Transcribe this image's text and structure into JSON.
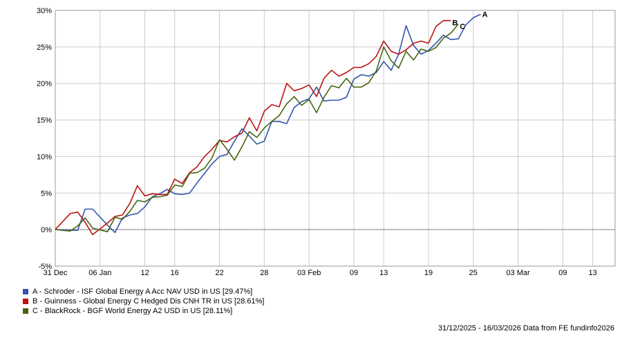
{
  "chart_data": {
    "type": "line",
    "title": "",
    "xlabel": "",
    "ylabel": "",
    "ylim": [
      -5,
      30
    ],
    "y_ticks": [
      -5,
      0,
      5,
      10,
      15,
      20,
      25,
      30
    ],
    "y_tick_labels": [
      "-5%",
      "0%",
      "5%",
      "10%",
      "15%",
      "20%",
      "25%",
      "30%"
    ],
    "x_start": "2025-12-31",
    "x_end": "2026-03-16",
    "x_ticks": [
      {
        "date": "2025-12-31",
        "label": "31 Dec"
      },
      {
        "date": "2026-01-06",
        "label": "06 Jan"
      },
      {
        "date": "2026-01-12",
        "label": "12"
      },
      {
        "date": "2026-01-16",
        "label": "16"
      },
      {
        "date": "2026-01-22",
        "label": "22"
      },
      {
        "date": "2026-01-28",
        "label": "28"
      },
      {
        "date": "2026-02-03",
        "label": "03 Feb"
      },
      {
        "date": "2026-02-09",
        "label": "09"
      },
      {
        "date": "2026-02-13",
        "label": "13"
      },
      {
        "date": "2026-02-19",
        "label": "19"
      },
      {
        "date": "2026-02-25",
        "label": "25"
      },
      {
        "date": "2026-03-03",
        "label": "03 Mar"
      },
      {
        "date": "2026-03-09",
        "label": "09"
      },
      {
        "date": "2026-03-13",
        "label": "13"
      }
    ],
    "grid": true,
    "legend_position": "bottom-left",
    "series": [
      {
        "name": "A - Schroder - ISF Global Energy A Acc NAV USD in US [29.47%]",
        "end_label": "A",
        "color": "#3355aa",
        "points": [
          [
            "2025-12-31",
            0.0
          ],
          [
            "2026-01-02",
            -0.1
          ],
          [
            "2026-01-03",
            -0.1
          ],
          [
            "2026-01-04",
            2.8
          ],
          [
            "2026-01-05",
            2.8
          ],
          [
            "2026-01-07",
            0.6
          ],
          [
            "2026-01-08",
            -0.4
          ],
          [
            "2026-01-09",
            1.6
          ],
          [
            "2026-01-10",
            2.0
          ],
          [
            "2026-01-11",
            2.2
          ],
          [
            "2026-01-12",
            3.1
          ],
          [
            "2026-01-13",
            4.5
          ],
          [
            "2026-01-14",
            4.9
          ],
          [
            "2026-01-15",
            5.5
          ],
          [
            "2026-01-16",
            4.9
          ],
          [
            "2026-01-17",
            4.8
          ],
          [
            "2026-01-18",
            5.0
          ],
          [
            "2026-01-19",
            6.4
          ],
          [
            "2026-01-20",
            7.7
          ],
          [
            "2026-01-21",
            9.0
          ],
          [
            "2026-01-22",
            10.0
          ],
          [
            "2026-01-23",
            10.3
          ],
          [
            "2026-01-24",
            12.1
          ],
          [
            "2026-01-25",
            13.8
          ],
          [
            "2026-01-26",
            12.8
          ],
          [
            "2026-01-27",
            11.7
          ],
          [
            "2026-01-28",
            12.1
          ],
          [
            "2026-01-29",
            14.8
          ],
          [
            "2026-01-30",
            14.8
          ],
          [
            "2026-01-31",
            14.5
          ],
          [
            "2026-02-01",
            16.7
          ],
          [
            "2026-02-02",
            17.5
          ],
          [
            "2026-02-03",
            17.9
          ],
          [
            "2026-02-04",
            19.5
          ],
          [
            "2026-02-05",
            17.6
          ],
          [
            "2026-02-06",
            17.7
          ],
          [
            "2026-02-07",
            17.7
          ],
          [
            "2026-02-08",
            18.1
          ],
          [
            "2026-02-09",
            20.6
          ],
          [
            "2026-02-10",
            21.2
          ],
          [
            "2026-02-11",
            21.0
          ],
          [
            "2026-02-12",
            21.5
          ],
          [
            "2026-02-13",
            23.0
          ],
          [
            "2026-02-14",
            21.8
          ],
          [
            "2026-02-15",
            24.0
          ],
          [
            "2026-02-16",
            27.9
          ],
          [
            "2026-02-17",
            25.2
          ],
          [
            "2026-02-18",
            24.0
          ],
          [
            "2026-02-19",
            24.5
          ],
          [
            "2026-02-20",
            25.5
          ],
          [
            "2026-02-21",
            26.6
          ],
          [
            "2026-02-22",
            26.0
          ],
          [
            "2026-02-23",
            26.1
          ],
          [
            "2026-02-24",
            28.0
          ],
          [
            "2026-02-25",
            29.0
          ],
          [
            "2026-02-26",
            29.47
          ]
        ]
      },
      {
        "name": "B - Guinness - Global Energy C Hedged Dis CNH TR in US [28.61%]",
        "end_label": "B",
        "color": "#bb1111",
        "points": [
          [
            "2025-12-31",
            0.0
          ],
          [
            "2026-01-02",
            2.2
          ],
          [
            "2026-01-03",
            2.4
          ],
          [
            "2026-01-04",
            1.0
          ],
          [
            "2026-01-05",
            -0.7
          ],
          [
            "2026-01-07",
            0.9
          ],
          [
            "2026-01-08",
            1.8
          ],
          [
            "2026-01-09",
            2.0
          ],
          [
            "2026-01-10",
            3.6
          ],
          [
            "2026-01-11",
            6.0
          ],
          [
            "2026-01-12",
            4.6
          ],
          [
            "2026-01-13",
            4.9
          ],
          [
            "2026-01-14",
            4.8
          ],
          [
            "2026-01-15",
            4.8
          ],
          [
            "2026-01-16",
            6.9
          ],
          [
            "2026-01-17",
            6.3
          ],
          [
            "2026-01-18",
            7.8
          ],
          [
            "2026-01-19",
            8.6
          ],
          [
            "2026-01-20",
            10.0
          ],
          [
            "2026-01-21",
            11.0
          ],
          [
            "2026-01-22",
            12.2
          ],
          [
            "2026-01-23",
            12.0
          ],
          [
            "2026-01-24",
            12.7
          ],
          [
            "2026-01-25",
            13.2
          ],
          [
            "2026-01-26",
            15.3
          ],
          [
            "2026-01-27",
            13.5
          ],
          [
            "2026-01-28",
            16.2
          ],
          [
            "2026-01-29",
            17.1
          ],
          [
            "2026-01-30",
            16.8
          ],
          [
            "2026-01-31",
            20.0
          ],
          [
            "2026-02-01",
            19.0
          ],
          [
            "2026-02-02",
            19.3
          ],
          [
            "2026-02-03",
            19.8
          ],
          [
            "2026-02-04",
            18.2
          ],
          [
            "2026-02-05",
            20.7
          ],
          [
            "2026-02-06",
            21.8
          ],
          [
            "2026-02-07",
            21.0
          ],
          [
            "2026-02-08",
            21.5
          ],
          [
            "2026-02-09",
            22.2
          ],
          [
            "2026-02-10",
            22.2
          ],
          [
            "2026-02-11",
            22.7
          ],
          [
            "2026-02-12",
            23.7
          ],
          [
            "2026-02-13",
            25.8
          ],
          [
            "2026-02-14",
            24.4
          ],
          [
            "2026-02-15",
            24.0
          ],
          [
            "2026-02-16",
            24.6
          ],
          [
            "2026-02-17",
            25.5
          ],
          [
            "2026-02-18",
            25.8
          ],
          [
            "2026-02-19",
            25.5
          ],
          [
            "2026-02-20",
            27.8
          ],
          [
            "2026-02-21",
            28.6
          ],
          [
            "2026-02-22",
            28.61
          ]
        ]
      },
      {
        "name": "C - BlackRock - BGF World Energy A2 USD in US [28.11%]",
        "end_label": "C",
        "color": "#446611",
        "points": [
          [
            "2025-12-31",
            0.0
          ],
          [
            "2026-01-02",
            -0.2
          ],
          [
            "2026-01-03",
            0.5
          ],
          [
            "2026-01-04",
            1.6
          ],
          [
            "2026-01-05",
            0.2
          ],
          [
            "2026-01-07",
            -0.3
          ],
          [
            "2026-01-08",
            1.7
          ],
          [
            "2026-01-09",
            1.4
          ],
          [
            "2026-01-10",
            2.5
          ],
          [
            "2026-01-11",
            4.0
          ],
          [
            "2026-01-12",
            3.8
          ],
          [
            "2026-01-13",
            4.4
          ],
          [
            "2026-01-14",
            4.5
          ],
          [
            "2026-01-15",
            4.7
          ],
          [
            "2026-01-16",
            6.1
          ],
          [
            "2026-01-17",
            5.9
          ],
          [
            "2026-01-18",
            7.7
          ],
          [
            "2026-01-19",
            7.8
          ],
          [
            "2026-01-20",
            8.4
          ],
          [
            "2026-01-21",
            9.8
          ],
          [
            "2026-01-22",
            12.3
          ],
          [
            "2026-01-23",
            11.0
          ],
          [
            "2026-01-24",
            9.5
          ],
          [
            "2026-01-25",
            11.3
          ],
          [
            "2026-01-26",
            13.4
          ],
          [
            "2026-01-27",
            12.6
          ],
          [
            "2026-01-28",
            13.9
          ],
          [
            "2026-01-29",
            14.8
          ],
          [
            "2026-01-30",
            15.6
          ],
          [
            "2026-01-31",
            17.2
          ],
          [
            "2026-02-01",
            18.2
          ],
          [
            "2026-02-02",
            17.0
          ],
          [
            "2026-02-03",
            17.8
          ],
          [
            "2026-02-04",
            16.0
          ],
          [
            "2026-02-05",
            18.1
          ],
          [
            "2026-02-06",
            19.7
          ],
          [
            "2026-02-07",
            19.4
          ],
          [
            "2026-02-08",
            20.7
          ],
          [
            "2026-02-09",
            19.5
          ],
          [
            "2026-02-10",
            19.5
          ],
          [
            "2026-02-11",
            20.1
          ],
          [
            "2026-02-12",
            21.7
          ],
          [
            "2026-02-13",
            25.0
          ],
          [
            "2026-02-14",
            23.1
          ],
          [
            "2026-02-15",
            22.1
          ],
          [
            "2026-02-16",
            24.4
          ],
          [
            "2026-02-17",
            23.2
          ],
          [
            "2026-02-18",
            24.7
          ],
          [
            "2026-02-19",
            24.4
          ],
          [
            "2026-02-20",
            24.9
          ],
          [
            "2026-02-21",
            26.2
          ],
          [
            "2026-02-22",
            26.9
          ],
          [
            "2026-02-23",
            28.11
          ]
        ]
      }
    ]
  },
  "footer": {
    "text": "31/12/2025 - 16/03/2026 Data from FE fundinfo2026"
  }
}
